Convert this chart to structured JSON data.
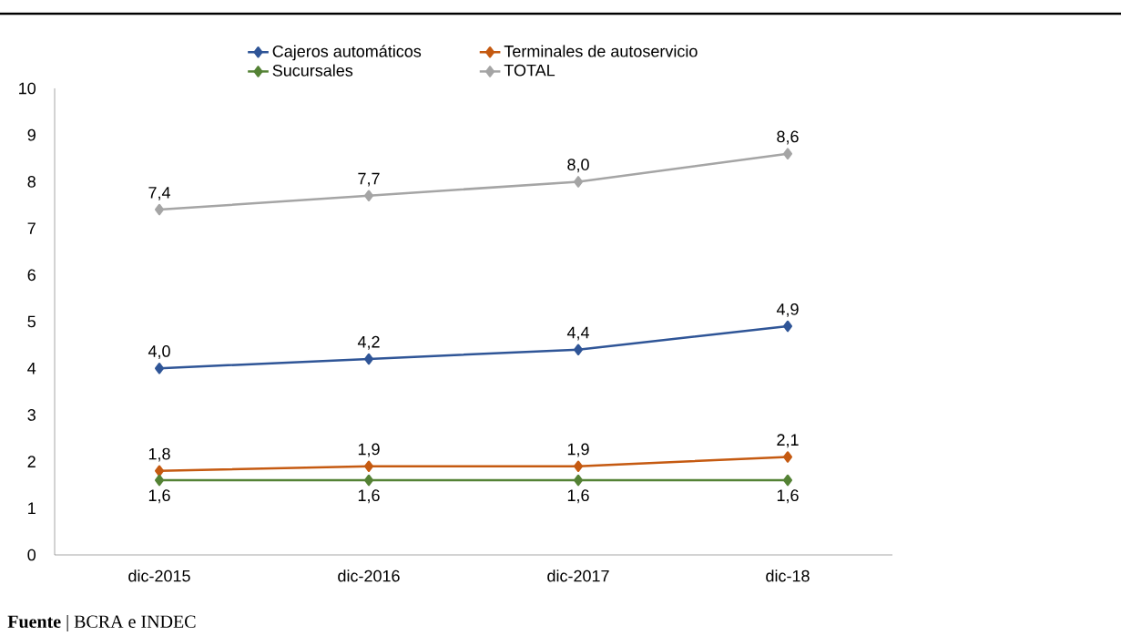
{
  "chart_data": {
    "type": "line",
    "categories": [
      "dic-2015",
      "dic-2016",
      "dic-2017",
      "dic-18"
    ],
    "series": [
      {
        "name": "Cajeros automáticos",
        "color": "#2f5597",
        "values": [
          4.0,
          4.2,
          4.4,
          4.9
        ],
        "value_labels": [
          "4,0",
          "4,2",
          "4,4",
          "4,9"
        ]
      },
      {
        "name": "Terminales de autoservicio",
        "color": "#c55a11",
        "values": [
          1.8,
          1.9,
          1.9,
          2.1
        ],
        "value_labels": [
          "1,8",
          "1,9",
          "1,9",
          "2,1"
        ]
      },
      {
        "name": "Sucursales",
        "color": "#548235",
        "values": [
          1.6,
          1.6,
          1.6,
          1.6
        ],
        "value_labels": [
          "1,6",
          "1,6",
          "1,6",
          "1,6"
        ]
      },
      {
        "name": "TOTAL",
        "color": "#a5a5a5",
        "values": [
          7.4,
          7.7,
          8.0,
          8.6
        ],
        "value_labels": [
          "7,4",
          "7,7",
          "8,0",
          "8,6"
        ]
      }
    ],
    "ylim": [
      0,
      10
    ],
    "yticks": [
      0,
      1,
      2,
      3,
      4,
      5,
      6,
      7,
      8,
      9,
      10
    ],
    "grid": false,
    "legend": "top",
    "marker": "diamond",
    "line_style": "solid",
    "annotations": [
      "**Fuente** | BCRA e INDEC"
    ]
  }
}
